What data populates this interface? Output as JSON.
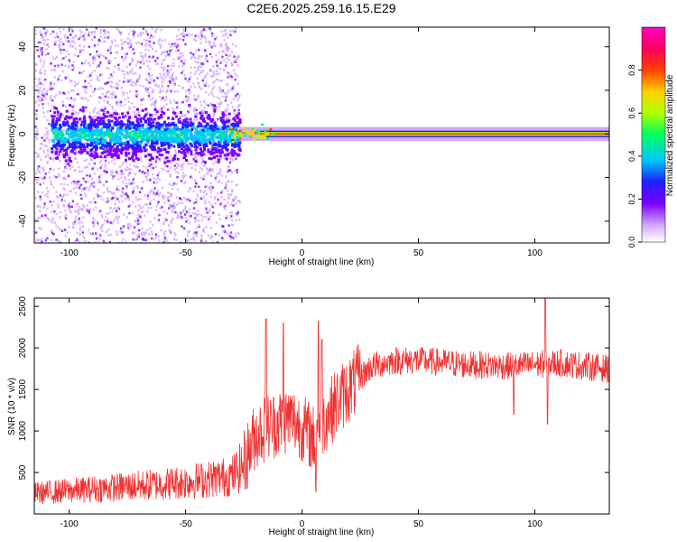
{
  "title": "C2E6.2025.259.16.15.E29",
  "chart_data": [
    {
      "type": "heatmap",
      "xlabel": "Height of straight line (km)",
      "ylabel": "Frequency (Hz)",
      "xlim": [
        -115,
        132
      ],
      "ylim": [
        -50,
        49
      ],
      "xticks": [
        -100,
        -50,
        0,
        50,
        100
      ],
      "yticks": [
        -40,
        -20,
        0,
        20,
        40
      ],
      "xtick_labels": [
        "-100",
        "-50",
        "0",
        "50",
        "100"
      ],
      "ytick_labels": [
        "-40",
        "-20",
        "0",
        "20",
        "40"
      ],
      "colorbar": {
        "label": "Normalized spectral amplitude",
        "range": [
          0,
          1
        ],
        "ticks": [
          0.0,
          0.2,
          0.4,
          0.6,
          0.8
        ],
        "tick_labels": [
          "0.0",
          "0.2",
          "0.4",
          "0.6",
          "0.8"
        ],
        "colormap": [
          "#ffffff",
          "#d0a8ff",
          "#7a00ff",
          "#2020ff",
          "#00c8ff",
          "#00ff60",
          "#b0ff00",
          "#ffd000",
          "#ff4000",
          "#ff0060",
          "#ff00c0"
        ]
      },
      "features": {
        "scatter_region_x": [
          -115,
          -27
        ],
        "band_start_x": -27,
        "center_frequency_hz": 0,
        "band_half_width_hz": 1.5
      }
    },
    {
      "type": "line",
      "xlabel": "Height of straight line (km)",
      "ylabel": "SNR (10 * v/v)",
      "xlim": [
        -115,
        132
      ],
      "ylim": [
        0,
        2600
      ],
      "xticks": [
        -100,
        -50,
        0,
        50,
        100
      ],
      "yticks": [
        500,
        1000,
        1500,
        2000,
        2500
      ],
      "xtick_labels": [
        "-100",
        "-50",
        "0",
        "50",
        "100"
      ],
      "ytick_labels": [
        "500",
        "1000",
        "1500",
        "2000",
        "2500"
      ],
      "color": "#f03232",
      "trend": {
        "x": [
          -115,
          -100,
          -80,
          -60,
          -40,
          -30,
          -25,
          -20,
          -15,
          -10,
          -5,
          0,
          5,
          10,
          15,
          20,
          25,
          30,
          40,
          50,
          70,
          90,
          110,
          132
        ],
        "y": [
          250,
          280,
          320,
          360,
          420,
          460,
          600,
          950,
          1050,
          1100,
          1150,
          1050,
          900,
          1150,
          1350,
          1500,
          1650,
          1780,
          1850,
          1850,
          1800,
          1780,
          1820,
          1750
        ]
      },
      "spikes": [
        {
          "x": -15.5,
          "y": 2350
        },
        {
          "x": -8,
          "y": 2300
        },
        {
          "x": 7,
          "y": 2320
        },
        {
          "x": 8.5,
          "y": 2100
        },
        {
          "x": 104.5,
          "y": 2600
        },
        {
          "x": 105.5,
          "y": 1080
        },
        {
          "x": 91,
          "y": 1200
        },
        {
          "x": 6,
          "y": 270
        }
      ]
    }
  ]
}
